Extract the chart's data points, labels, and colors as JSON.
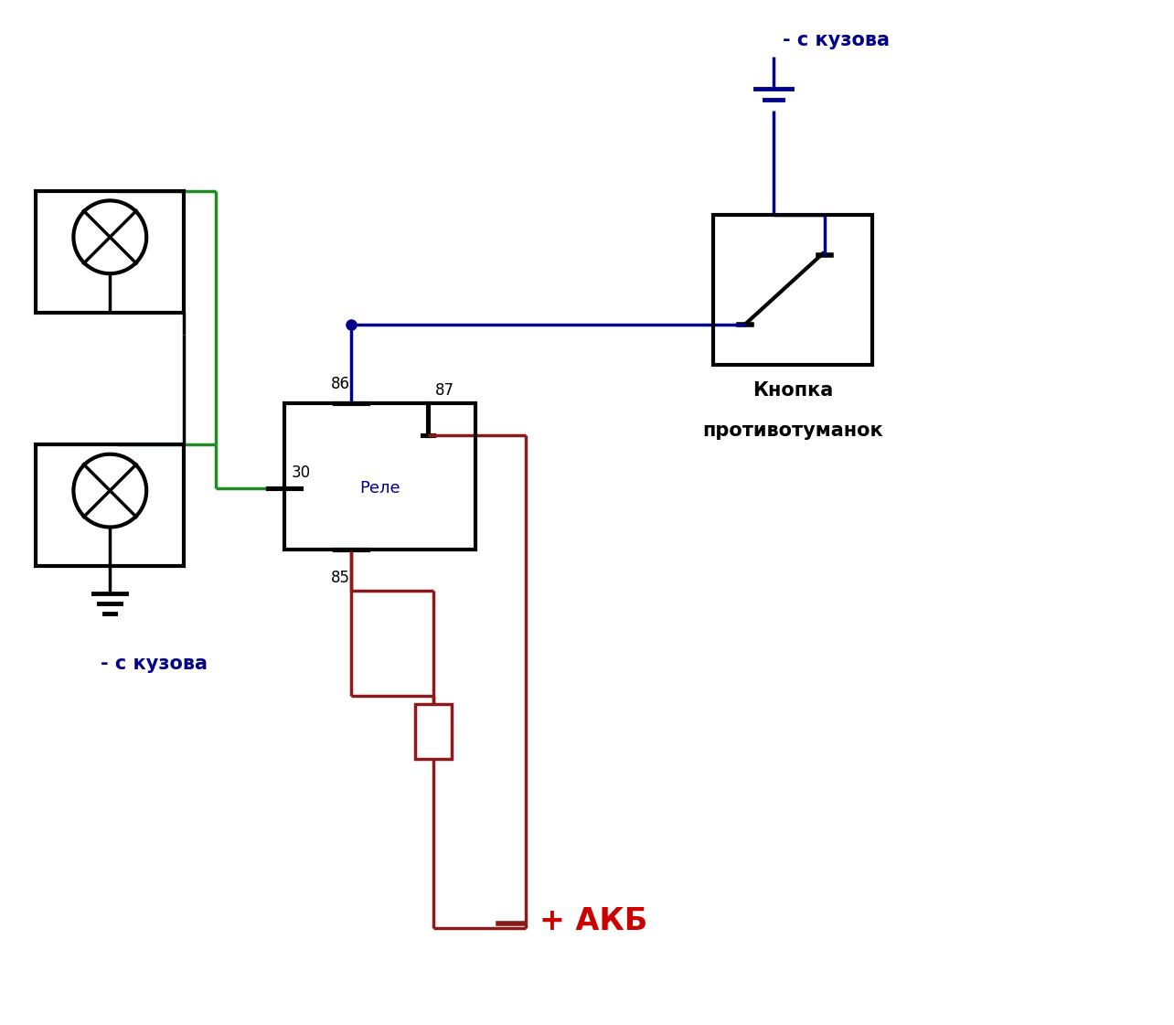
{
  "bg_color": "#ffffff",
  "figsize": [
    12.84,
    11.21
  ],
  "dpi": 100,
  "colors": {
    "black": "#000000",
    "green": "#228B22",
    "blue": "#00008B",
    "dark_red": "#8B1A1A",
    "red_text": "#CC0000"
  },
  "labels": {
    "minus_kuzova_top": "- с кузова",
    "knopka_1": "Кнопка",
    "knopka_2": "противотуманок",
    "minus_kuzova_bottom": "- с кузова",
    "rele": "Реле",
    "akb": "+ АКБ",
    "p86": "86",
    "p87": "87",
    "p30": "30",
    "p85": "85"
  }
}
